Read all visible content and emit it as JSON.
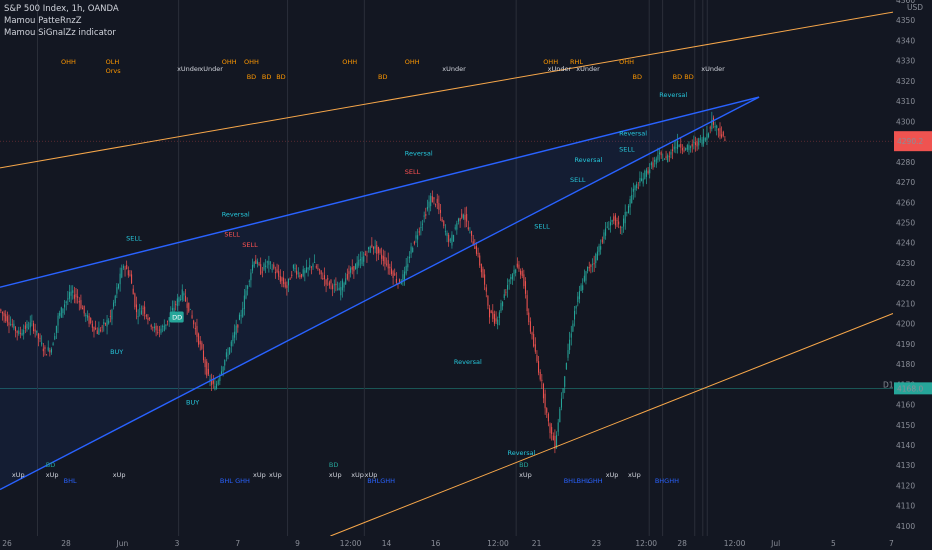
{
  "legend": {
    "title": "S&P 500 Index, 1h, OANDA",
    "indicator_1": "Mamou PatteRnzZ",
    "indicator_2": "Mamou SiGnalZz indicator"
  },
  "currency": "USD",
  "colors": {
    "background": "#131722",
    "up": "#26a69a",
    "down": "#ef5350",
    "wedge": "#2962ff",
    "channel": "#f7a74a",
    "orange_text": "#ff9800",
    "teal_text": "#26c6da",
    "red_text": "#ff5252",
    "price_line": "#26a69a",
    "current_price_bg": "#ef5350"
  },
  "price_axis": {
    "min": 4095,
    "max": 4360,
    "ticks": [
      4100,
      4110,
      4120,
      4130,
      4140,
      4150,
      4160,
      4170,
      4180,
      4190,
      4200,
      4210,
      4220,
      4230,
      4240,
      4250,
      4260,
      4270,
      4280,
      4290,
      4300,
      4310,
      4320,
      4330,
      4340,
      4350,
      4360
    ],
    "current_price": "4290.2",
    "line_price": "4168.0",
    "line_label": "D1"
  },
  "time_axis": {
    "labels": [
      "26",
      "28",
      "Jun",
      "3",
      "7",
      "9",
      "12:00",
      "14",
      "16",
      "12:00",
      "21",
      "23",
      "12:00",
      "28",
      "12:00",
      "Jul",
      "5",
      "7"
    ]
  },
  "chart_data": {
    "type": "candlestick",
    "ohlc_path": [
      4207,
      4203,
      4199,
      4195,
      4198,
      4200,
      4193,
      4186,
      4188,
      4203,
      4210,
      4215,
      4213,
      4205,
      4200,
      4196,
      4199,
      4203,
      4217,
      4229,
      4224,
      4205,
      4208,
      4201,
      4196,
      4198,
      4203,
      4210,
      4215,
      4208,
      4197,
      4186,
      4173,
      4168,
      4178,
      4186,
      4195,
      4205,
      4220,
      4232,
      4226,
      4230,
      4227,
      4222,
      4218,
      4228,
      4224,
      4226,
      4230,
      4225,
      4221,
      4219,
      4216,
      4223,
      4227,
      4230,
      4234,
      4239,
      4235,
      4231,
      4226,
      4220,
      4224,
      4237,
      4245,
      4253,
      4262,
      4259,
      4247,
      4240,
      4250,
      4255,
      4244,
      4236,
      4223,
      4205,
      4201,
      4212,
      4222,
      4228,
      4225,
      4201,
      4185,
      4170,
      4150,
      4140,
      4164,
      4187,
      4206,
      4218,
      4227,
      4231,
      4240,
      4248,
      4252,
      4246,
      4256,
      4266,
      4270,
      4275,
      4279,
      4283,
      4281,
      4287,
      4289,
      4286,
      4288,
      4290,
      4292,
      4300,
      4296,
      4290
    ],
    "wedge_upper": {
      "from": [
        0,
        4218
      ],
      "to": [
        1,
        4312
      ]
    },
    "wedge_lower": {
      "from": [
        0,
        4118
      ],
      "to": [
        1,
        4312
      ]
    },
    "channel_upper": {
      "from": [
        0,
        4277
      ],
      "to": [
        1,
        4354
      ]
    },
    "channel_lower": {
      "from": [
        0.37,
        4095
      ],
      "to": [
        1,
        4205
      ]
    }
  },
  "annotations": {
    "top_orange": [
      {
        "t": 0.075,
        "text": "OHH"
      },
      {
        "t": 0.125,
        "text": "OLH"
      },
      {
        "t": 0.125,
        "text": "Orvs",
        "row": 2
      },
      {
        "t": 0.255,
        "text": "OHH"
      },
      {
        "t": 0.28,
        "text": "OHH"
      },
      {
        "t": 0.39,
        "text": "OHH"
      },
      {
        "t": 0.46,
        "text": "OHH"
      },
      {
        "t": 0.615,
        "text": "OHH"
      },
      {
        "t": 0.645,
        "text": "RHL"
      },
      {
        "t": 0.7,
        "text": "OHH"
      },
      {
        "t": 0.283,
        "text": "BD",
        "row": 3
      },
      {
        "t": 0.3,
        "text": "BD",
        "row": 3
      },
      {
        "t": 0.316,
        "text": "BD",
        "row": 3
      },
      {
        "t": 0.43,
        "text": "BD",
        "row": 3
      },
      {
        "t": 0.715,
        "text": "BD",
        "row": 3
      },
      {
        "t": 0.76,
        "text": "BD",
        "row": 3
      },
      {
        "t": 0.773,
        "text": "BD",
        "row": 3
      }
    ],
    "top_white": [
      {
        "t": 0.205,
        "text": "xUnder"
      },
      {
        "t": 0.23,
        "text": "xUnder"
      },
      {
        "t": 0.502,
        "text": "xUnder"
      },
      {
        "t": 0.62,
        "text": "xUnder"
      },
      {
        "t": 0.652,
        "text": "xUnder"
      },
      {
        "t": 0.792,
        "text": "xUnder"
      }
    ],
    "signals": [
      {
        "t": 0.148,
        "p": 4241,
        "text": "SELL",
        "c": "teal"
      },
      {
        "t": 0.13,
        "p": 4185,
        "text": "BUY",
        "c": "teal"
      },
      {
        "t": 0.215,
        "p": 4160,
        "text": "BUY",
        "c": "teal"
      },
      {
        "t": 0.255,
        "p": 4253,
        "text": "Reversal",
        "c": "teal"
      },
      {
        "t": 0.258,
        "p": 4243,
        "text": "SELL",
        "c": "red"
      },
      {
        "t": 0.278,
        "p": 4238,
        "text": "SELL",
        "c": "red"
      },
      {
        "t": 0.46,
        "p": 4283,
        "text": "Reversal",
        "c": "teal"
      },
      {
        "t": 0.46,
        "p": 4274,
        "text": "SELL",
        "c": "red"
      },
      {
        "t": 0.515,
        "p": 4180,
        "text": "Reversal",
        "c": "teal"
      },
      {
        "t": 0.575,
        "p": 4135,
        "text": "Reversal",
        "c": "teal"
      },
      {
        "t": 0.605,
        "p": 4247,
        "text": "SELL",
        "c": "teal"
      },
      {
        "t": 0.65,
        "p": 4280,
        "text": "Reversal",
        "c": "teal"
      },
      {
        "t": 0.645,
        "p": 4270,
        "text": "SELL",
        "c": "teal"
      },
      {
        "t": 0.7,
        "p": 4293,
        "text": "Reversal",
        "c": "teal"
      },
      {
        "t": 0.7,
        "p": 4285,
        "text": "SELL",
        "c": "teal"
      },
      {
        "t": 0.745,
        "p": 4312,
        "text": "Reversal",
        "c": "teal"
      }
    ],
    "bottom": [
      {
        "t": 0.02,
        "text": "xUp"
      },
      {
        "t": 0.058,
        "text": "BD"
      },
      {
        "t": 0.058,
        "text": "xUp"
      },
      {
        "t": 0.078,
        "text": "BHL"
      },
      {
        "t": 0.133,
        "text": "xUp"
      },
      {
        "t": 0.253,
        "text": "BHL"
      },
      {
        "t": 0.27,
        "text": "GHH"
      },
      {
        "t": 0.29,
        "text": "xUp"
      },
      {
        "t": 0.308,
        "text": "xUp"
      },
      {
        "t": 0.375,
        "text": "BD"
      },
      {
        "t": 0.375,
        "text": "xUp"
      },
      {
        "t": 0.4,
        "text": "xUp"
      },
      {
        "t": 0.415,
        "text": "xUp"
      },
      {
        "t": 0.418,
        "text": "BHLGHH"
      },
      {
        "t": 0.588,
        "text": "BD"
      },
      {
        "t": 0.588,
        "text": "xUp"
      },
      {
        "t": 0.638,
        "text": "BHLBHL"
      },
      {
        "t": 0.665,
        "text": "GHH"
      },
      {
        "t": 0.685,
        "text": "xUp"
      },
      {
        "t": 0.71,
        "text": "xUp"
      },
      {
        "t": 0.74,
        "text": "BHGHH"
      }
    ],
    "box_label": "DD"
  }
}
